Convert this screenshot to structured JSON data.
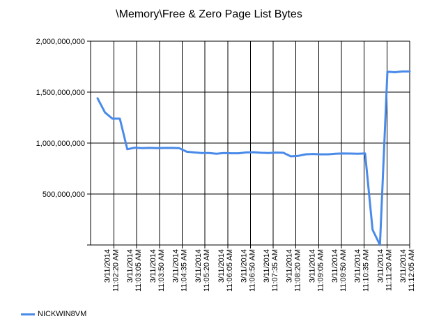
{
  "colors": {
    "series_line": "#4a8ae8",
    "grid": "#000000",
    "background": "#ffffff"
  },
  "chart_data": {
    "type": "line",
    "title": "\\Memory\\Free & Zero Page List Bytes",
    "xlabel": "",
    "ylabel": "",
    "ylim": [
      0,
      2000000000
    ],
    "yticks": [
      500000000,
      1000000000,
      1500000000,
      2000000000
    ],
    "ytick_labels": [
      "500,000,000",
      "1,000,000,000",
      "1,500,000,000",
      "2,000,000,000"
    ],
    "grid": true,
    "legend_position": "bottom-left",
    "xtick_labels": [
      "3/11/2014 11:02:20 AM",
      "3/11/2014 11:03:05 AM",
      "3/11/2014 11:03:50 AM",
      "3/11/2014 11:04:35 AM",
      "3/11/2014 11:05:20 AM",
      "3/11/2014 11:06:05 AM",
      "3/11/2014 11:06:50 AM",
      "3/11/2014 11:07:35 AM",
      "3/11/2014 11:08:20 AM",
      "3/11/2014 11:09:05 AM",
      "3/11/2014 11:09:50 AM",
      "3/11/2014 11:10:35 AM",
      "3/11/2014 11:11:20 AM",
      "3/11/2014 11:12:05 AM"
    ],
    "series": [
      {
        "name": "NICKWIN8VM",
        "values": [
          1440000000,
          1300000000,
          1240000000,
          1240000000,
          940000000,
          955000000,
          950000000,
          953000000,
          950000000,
          952000000,
          953000000,
          950000000,
          915000000,
          908000000,
          903000000,
          903000000,
          895000000,
          903000000,
          900000000,
          900000000,
          908000000,
          910000000,
          905000000,
          903000000,
          907000000,
          905000000,
          870000000,
          875000000,
          890000000,
          893000000,
          890000000,
          890000000,
          895000000,
          898000000,
          897000000,
          895000000,
          898000000,
          150000000,
          0,
          1700000000,
          1695000000,
          1703000000,
          1703000000
        ]
      }
    ]
  }
}
